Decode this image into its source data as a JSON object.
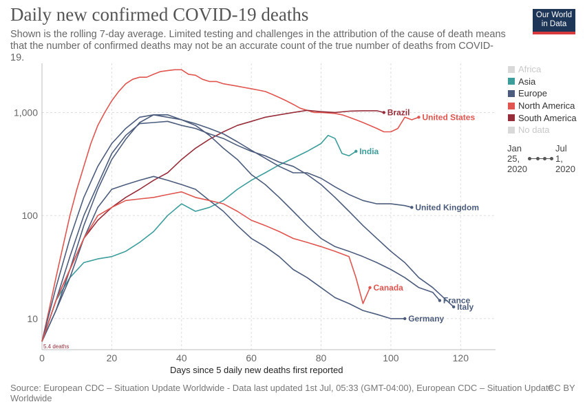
{
  "header": {
    "title": "Daily new confirmed COVID-19 deaths",
    "subtitle": "Shown is the rolling 7-day average. Limited testing and challenges in the attribution of the cause of death means that the number of confirmed deaths may not be an accurate count of the true number of deaths from COVID-19."
  },
  "logo": {
    "line1": "Our World",
    "line2": "in Data"
  },
  "footer": {
    "source": "Source: European CDC – Situation Update Worldwide - Data last updated 1st Jul, 05:33 (GMT-04:00), European CDC – Situation Update Worldwide",
    "license": "CC BY"
  },
  "legend": [
    {
      "label": "Africa",
      "color": "#d9d9d9",
      "dim": true
    },
    {
      "label": "Asia",
      "color": "#3c9d9b",
      "dim": false
    },
    {
      "label": "Europe",
      "color": "#4c5c7c",
      "dim": false
    },
    {
      "label": "North America",
      "color": "#e0554f",
      "dim": false
    },
    {
      "label": "South America",
      "color": "#962d3a",
      "dim": false
    },
    {
      "label": "No data",
      "color": "#d9d9d9",
      "dim": true
    }
  ],
  "timeline": {
    "start": "Jan 25, 2020",
    "end": "Jul 1, 2020"
  },
  "chart_data": {
    "type": "line",
    "xlabel": "Days since 5 daily new deaths first reported",
    "ylabel": "",
    "y_scale": "log",
    "xlim": [
      0,
      130
    ],
    "ylim": [
      5,
      3000
    ],
    "x_ticks": [
      "0",
      "20",
      "40",
      "60",
      "80",
      "100",
      "120"
    ],
    "y_ticks": [
      "10",
      "100",
      "1,000"
    ],
    "grid": true,
    "start_annotation": "5.4 deaths",
    "series": [
      {
        "name": "United States",
        "region": "North America",
        "label": "United States",
        "color": "#e0554f",
        "x": [
          0,
          2,
          4,
          6,
          8,
          10,
          12,
          14,
          16,
          18,
          20,
          22,
          24,
          26,
          28,
          30,
          32,
          34,
          36,
          38,
          40,
          42,
          44,
          46,
          48,
          50,
          52,
          54,
          56,
          58,
          60,
          62,
          64,
          66,
          68,
          70,
          72,
          74,
          76,
          78,
          80,
          82,
          84,
          86,
          88,
          90,
          92,
          94,
          96,
          98,
          100,
          102,
          104,
          106,
          108
        ],
        "y": [
          6,
          12,
          25,
          50,
          100,
          180,
          300,
          500,
          750,
          1000,
          1300,
          1600,
          1900,
          2100,
          2200,
          2200,
          2350,
          2500,
          2550,
          2600,
          2600,
          2350,
          2300,
          2100,
          2000,
          2000,
          1900,
          1850,
          1800,
          1750,
          1700,
          1650,
          1600,
          1500,
          1400,
          1300,
          1200,
          1100,
          1050,
          1000,
          1000,
          990,
          980,
          950,
          900,
          850,
          800,
          750,
          700,
          650,
          650,
          700,
          900,
          850,
          900
        ]
      },
      {
        "name": "Brazil",
        "region": "South America",
        "label": "Brazil",
        "color": "#962d3a",
        "x": [
          0,
          4,
          8,
          12,
          16,
          20,
          24,
          28,
          32,
          36,
          40,
          44,
          48,
          52,
          56,
          60,
          64,
          68,
          72,
          76,
          80,
          84,
          88,
          92,
          96,
          98
        ],
        "y": [
          6,
          15,
          30,
          60,
          90,
          120,
          150,
          180,
          220,
          260,
          350,
          450,
          550,
          650,
          750,
          820,
          900,
          950,
          1000,
          1050,
          1020,
          1000,
          1030,
          1040,
          1040,
          1000
        ]
      },
      {
        "name": "India",
        "region": "Asia",
        "label": "India",
        "color": "#3c9d9b",
        "x": [
          0,
          4,
          8,
          12,
          16,
          20,
          24,
          28,
          32,
          36,
          40,
          44,
          48,
          52,
          56,
          60,
          64,
          68,
          72,
          76,
          80,
          82,
          84,
          86,
          88,
          90
        ],
        "y": [
          6,
          15,
          25,
          35,
          38,
          40,
          45,
          55,
          70,
          100,
          130,
          110,
          120,
          140,
          180,
          220,
          260,
          310,
          360,
          420,
          500,
          600,
          560,
          400,
          380,
          420
        ]
      },
      {
        "name": "United Kingdom",
        "region": "Europe",
        "label": "United Kingdom",
        "color": "#4c5c7c",
        "x": [
          0,
          4,
          8,
          12,
          16,
          20,
          24,
          28,
          32,
          36,
          40,
          44,
          48,
          52,
          56,
          60,
          64,
          68,
          72,
          76,
          80,
          84,
          88,
          92,
          96,
          100,
          104,
          106
        ],
        "y": [
          6,
          20,
          60,
          150,
          300,
          500,
          700,
          900,
          950,
          900,
          850,
          780,
          700,
          620,
          520,
          430,
          360,
          300,
          260,
          260,
          230,
          190,
          160,
          140,
          130,
          130,
          125,
          120
        ]
      },
      {
        "name": "Italy",
        "region": "Europe",
        "label": "Italy",
        "color": "#4c5c7c",
        "x": [
          0,
          4,
          8,
          12,
          16,
          20,
          24,
          28,
          32,
          36,
          40,
          44,
          48,
          52,
          56,
          60,
          64,
          68,
          72,
          76,
          80,
          84,
          88,
          92,
          96,
          100,
          104,
          108,
          112,
          116,
          118
        ],
        "y": [
          6,
          15,
          40,
          100,
          200,
          400,
          600,
          780,
          800,
          820,
          750,
          700,
          620,
          560,
          480,
          420,
          380,
          330,
          300,
          250,
          200,
          150,
          110,
          80,
          60,
          45,
          35,
          25,
          20,
          15,
          13
        ]
      },
      {
        "name": "France",
        "region": "Europe",
        "label": "France",
        "color": "#4c5c7c",
        "x": [
          0,
          4,
          8,
          12,
          16,
          20,
          24,
          28,
          32,
          36,
          40,
          44,
          48,
          52,
          56,
          60,
          64,
          68,
          72,
          76,
          80,
          84,
          88,
          92,
          96,
          100,
          104,
          108,
          112,
          114
        ],
        "y": [
          6,
          12,
          30,
          80,
          180,
          350,
          550,
          800,
          950,
          950,
          850,
          750,
          600,
          450,
          350,
          250,
          200,
          150,
          110,
          80,
          60,
          50,
          45,
          40,
          35,
          30,
          25,
          20,
          18,
          15
        ]
      },
      {
        "name": "Germany",
        "region": "Europe",
        "label": "Germany",
        "color": "#4c5c7c",
        "x": [
          0,
          4,
          8,
          12,
          16,
          20,
          24,
          28,
          32,
          36,
          40,
          44,
          48,
          52,
          56,
          60,
          64,
          68,
          72,
          76,
          80,
          84,
          88,
          92,
          96,
          100,
          104
        ],
        "y": [
          6,
          12,
          25,
          60,
          120,
          180,
          200,
          220,
          240,
          220,
          200,
          180,
          140,
          110,
          80,
          60,
          50,
          40,
          30,
          25,
          20,
          16,
          14,
          12,
          11,
          10,
          10
        ]
      },
      {
        "name": "Canada",
        "region": "North America",
        "label": "Canada",
        "color": "#e0554f",
        "x": [
          0,
          4,
          8,
          12,
          16,
          20,
          24,
          28,
          32,
          36,
          40,
          44,
          48,
          52,
          56,
          60,
          64,
          68,
          72,
          76,
          80,
          84,
          88,
          90,
          92,
          94
        ],
        "y": [
          6,
          15,
          30,
          60,
          100,
          120,
          140,
          145,
          150,
          160,
          170,
          150,
          140,
          130,
          110,
          90,
          80,
          70,
          60,
          55,
          50,
          45,
          40,
          25,
          14,
          20
        ]
      }
    ]
  }
}
